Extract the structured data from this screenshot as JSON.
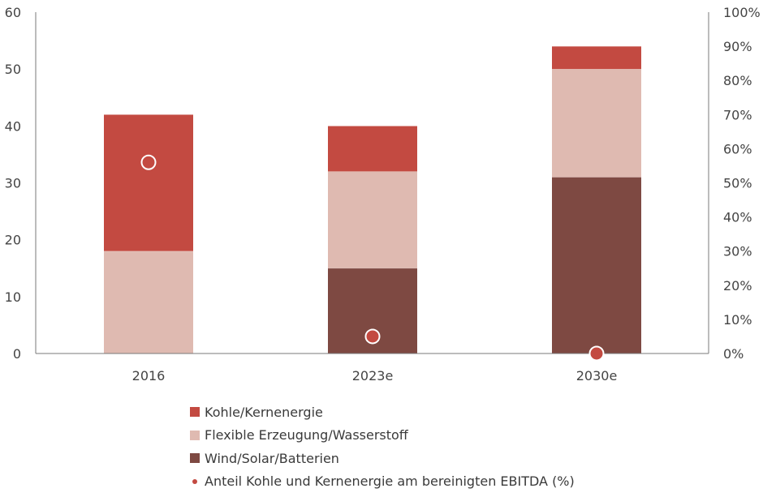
{
  "chart_data": {
    "type": "bar",
    "stacked": true,
    "title": "",
    "xlabel": "",
    "ylabel": "",
    "categories": [
      "2016",
      "2023e",
      "2030e"
    ],
    "series": [
      {
        "name": "Wind/Solar/Batterien",
        "color": "#7e4942",
        "values": [
          0,
          15,
          31
        ]
      },
      {
        "name": "Flexible Erzeugung/Wasserstoff",
        "color": "#dfbab1",
        "values": [
          18,
          17,
          19
        ]
      },
      {
        "name": "Kohle/Kernenergie",
        "color": "#c34a41",
        "values": [
          24,
          8,
          4
        ]
      }
    ],
    "secondary_series": {
      "name": "Anteil Kohle und Kernenergie am bereinigten EBITDA (%)",
      "type": "scatter",
      "axis": "right",
      "color": "#c34a41",
      "values": [
        56,
        5,
        0
      ]
    },
    "ylim": [
      0,
      60
    ],
    "y_ticks": [
      "0",
      "10",
      "20",
      "30",
      "40",
      "50",
      "60"
    ],
    "y2lim": [
      0,
      100
    ],
    "y2_ticks": [
      "0%",
      "10%",
      "20%",
      "30%",
      "40%",
      "50%",
      "60%",
      "70%",
      "80%",
      "90%",
      "100%"
    ],
    "grid": false,
    "legend_position": "bottom"
  },
  "legend": {
    "items": [
      {
        "label": "Kohle/Kernenergie",
        "color": "#c34a41",
        "shape": "square"
      },
      {
        "label": "Flexible Erzeugung/Wasserstoff",
        "color": "#dfbab1",
        "shape": "square"
      },
      {
        "label": "Wind/Solar/Batterien",
        "color": "#7e4942",
        "shape": "square"
      },
      {
        "label": "Anteil Kohle und Kernenergie am bereinigten EBITDA (%)",
        "color": "#c34a41",
        "shape": "dot"
      }
    ]
  }
}
